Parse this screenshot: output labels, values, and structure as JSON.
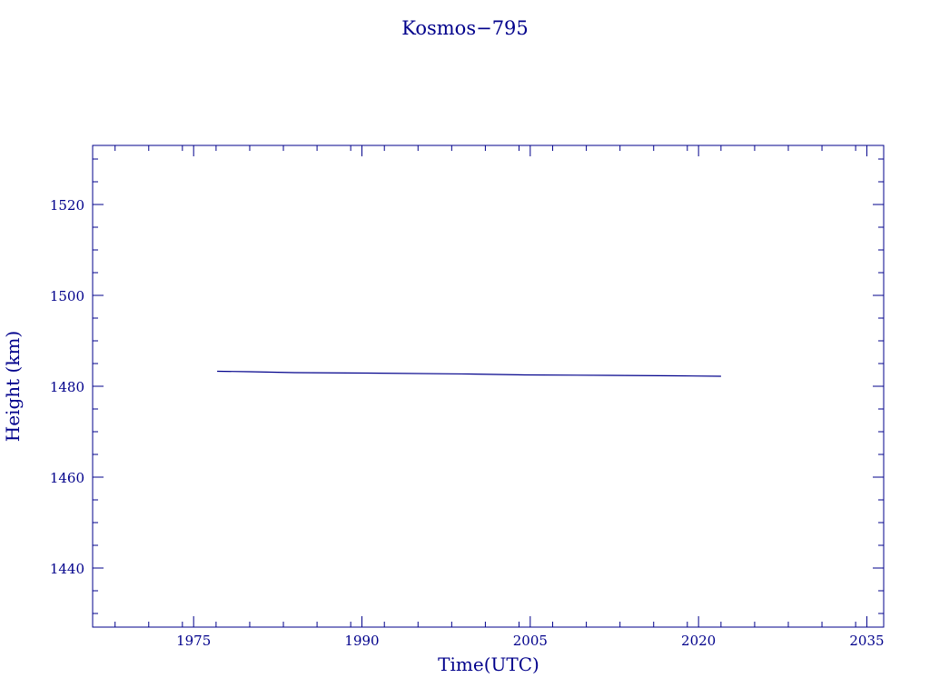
{
  "chart_data": {
    "type": "line",
    "title": "Kosmos−795",
    "xlabel": "Time(UTC)",
    "ylabel": "Height  (km)",
    "xlim": [
      1966,
      2036.5
    ],
    "ylim": [
      1427,
      1533
    ],
    "x_ticks": [
      1975,
      1990,
      2005,
      2020,
      2035
    ],
    "x_tick_labels": [
      "1975",
      "1990",
      "2005",
      "2020",
      "2035"
    ],
    "x_minor_step": 3,
    "y_ticks": [
      1440,
      1460,
      1480,
      1500,
      1520
    ],
    "y_tick_labels": [
      "1440",
      "1460",
      "1480",
      "1500",
      "1520"
    ],
    "y_minor_step": 5,
    "grid": false,
    "color": "#00008b",
    "series": [
      {
        "x": [
          1977.1,
          1980.0,
          1984.0,
          1990.5,
          1999.5,
          2004.5,
          2012.0,
          2018.0,
          2022.0
        ],
        "y": [
          1483.3,
          1483.2,
          1483.0,
          1482.9,
          1482.7,
          1482.5,
          1482.4,
          1482.3,
          1482.2
        ]
      }
    ]
  }
}
